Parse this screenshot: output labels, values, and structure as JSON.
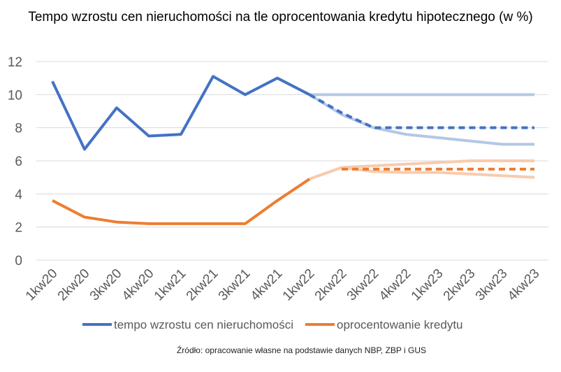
{
  "chart_data": {
    "type": "line",
    "title": "Tempo wzrostu cen nieruchomości na tle oprocentowania kredytu hipotecznego (w %)",
    "categories": [
      "1kw20",
      "2kw20",
      "3kw20",
      "4kw20",
      "1kw21",
      "2kw21",
      "3kw21",
      "4kw21",
      "1kw22",
      "2kw22",
      "3kw22",
      "4kw22",
      "1kw23",
      "2kw23",
      "3kw23",
      "4kw23"
    ],
    "ylim": [
      0,
      12
    ],
    "yticks": [
      0,
      2,
      4,
      6,
      8,
      10,
      12
    ],
    "grid": true,
    "legend_position": "bottom",
    "series": [
      {
        "name": "tempo wzrostu cen nieruchomości",
        "color": "#4472C4",
        "style": "solid",
        "values": [
          10.8,
          6.7,
          9.2,
          7.5,
          7.6,
          11.1,
          10.0,
          11.0,
          10.0,
          null,
          null,
          null,
          null,
          null,
          null,
          null
        ]
      },
      {
        "color": "#B4C7E7",
        "style": "solid",
        "values": [
          null,
          null,
          null,
          null,
          null,
          null,
          null,
          null,
          10.0,
          10.0,
          10.0,
          10.0,
          10.0,
          10.0,
          10.0,
          10.0
        ]
      },
      {
        "color": "#B4C7E7",
        "style": "solid",
        "values": [
          null,
          null,
          null,
          null,
          null,
          null,
          null,
          null,
          10.0,
          8.8,
          8.0,
          7.6,
          7.4,
          7.2,
          7.0,
          7.0
        ]
      },
      {
        "color": "#4472C4",
        "style": "dashed",
        "values": [
          null,
          null,
          null,
          null,
          null,
          null,
          null,
          null,
          10.0,
          8.9,
          8.0,
          8.0,
          8.0,
          8.0,
          8.0,
          8.0
        ]
      },
      {
        "name": "oprocentowanie kredytu",
        "color": "#ED7D31",
        "style": "solid",
        "values": [
          3.6,
          2.6,
          2.3,
          2.2,
          2.2,
          2.2,
          2.2,
          3.6,
          4.9,
          null,
          null,
          null,
          null,
          null,
          null,
          null
        ]
      },
      {
        "color": "#F8CBAD",
        "style": "solid",
        "values": [
          null,
          null,
          null,
          null,
          null,
          null,
          null,
          null,
          4.9,
          5.6,
          5.7,
          5.8,
          5.9,
          6.0,
          6.0,
          6.0
        ]
      },
      {
        "color": "#F8CBAD",
        "style": "solid",
        "values": [
          null,
          null,
          null,
          null,
          null,
          null,
          null,
          null,
          4.9,
          5.6,
          5.35,
          5.3,
          5.3,
          5.2,
          5.1,
          5.0
        ]
      },
      {
        "color": "#ED7D31",
        "style": "dashed",
        "values": [
          null,
          null,
          null,
          null,
          null,
          null,
          null,
          null,
          null,
          5.5,
          5.5,
          5.5,
          5.5,
          5.5,
          5.5,
          5.5
        ]
      }
    ],
    "source": "Źródło: opracowanie własne na podstawie danych NBP, ZBP i GUS"
  }
}
